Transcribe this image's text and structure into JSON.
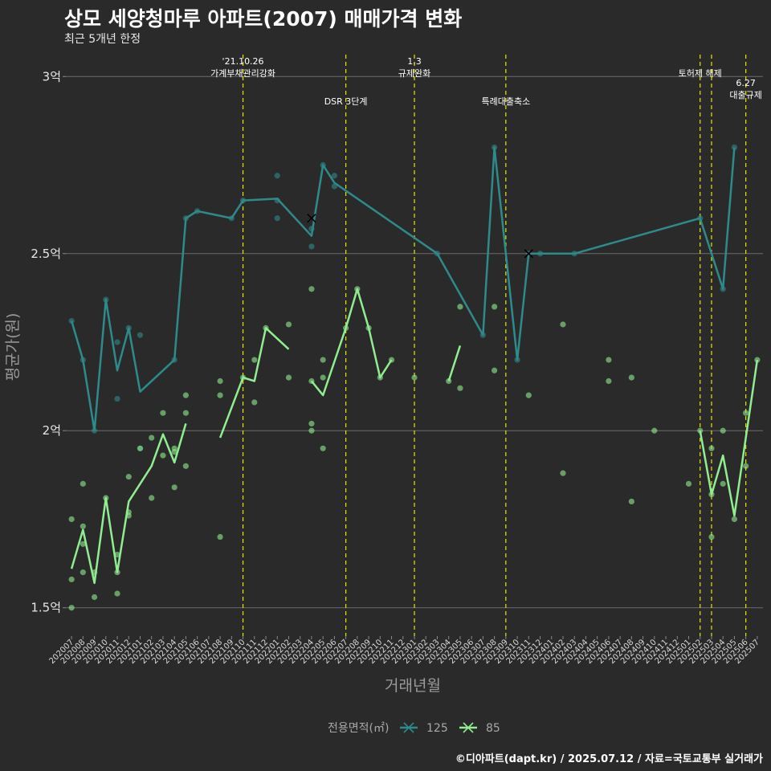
{
  "title": "상모 세양청마루 아파트(2007) 매매가격 변화",
  "subtitle": "최근 5개년 한정",
  "caption": "©디아파트(dapt.kr) / 2025.07.12 / 자료=국토교통부 실거래가",
  "chart_data": {
    "type": "line",
    "xlabel": "거래년월",
    "ylabel": "평균가(원)",
    "ylim": [
      1.42,
      3.08
    ],
    "y_ticks": [
      {
        "value": 1.5,
        "label": "1.5억"
      },
      {
        "value": 2.0,
        "label": "2억"
      },
      {
        "value": 2.5,
        "label": "2.5억"
      },
      {
        "value": 3.0,
        "label": "3억"
      }
    ],
    "categories": [
      "202007",
      "202008",
      "202009",
      "202010",
      "202011",
      "202012",
      "202101",
      "202102",
      "202103",
      "202104",
      "202105",
      "202106",
      "202107",
      "202108",
      "202109",
      "202110",
      "202111",
      "202112",
      "202201",
      "202202",
      "202203",
      "202204",
      "202205",
      "202206",
      "202207",
      "202208",
      "202209",
      "202210",
      "202211",
      "202212",
      "202301",
      "202302",
      "202303",
      "202304",
      "202305",
      "202306",
      "202307",
      "202308",
      "202309",
      "202310",
      "202311",
      "202312",
      "202401",
      "202402",
      "202403",
      "202404",
      "202405",
      "202406",
      "202407",
      "202408",
      "202409",
      "202410",
      "202411",
      "202412",
      "202501",
      "202502",
      "202503",
      "202504",
      "202505",
      "202506",
      "202507"
    ],
    "events": [
      {
        "x": "202110",
        "lines": [
          "'21.10.26",
          "가계부채관리강화"
        ],
        "row": 0
      },
      {
        "x": "202207",
        "lines": [
          "DSR 3단계"
        ],
        "row": 1
      },
      {
        "x": "202301",
        "lines": [
          "1.3",
          "규제완화"
        ],
        "row": 0
      },
      {
        "x": "202309",
        "lines": [
          "특례대출축소"
        ],
        "row": 1
      },
      {
        "x": "202502",
        "lines": [
          "토허제 해제"
        ],
        "row": 0
      },
      {
        "x": "202503",
        "lines": [],
        "row": 0
      },
      {
        "x": "202506",
        "lines": [
          "6.27",
          "대출규제"
        ],
        "row": 2
      }
    ],
    "legend": {
      "title": "전용면적(㎡)",
      "position": "bottom"
    },
    "series": [
      {
        "name": "125",
        "color": "#2e8b8b",
        "line": [
          [
            0,
            2.31
          ],
          [
            1,
            2.2
          ],
          [
            2,
            2.0
          ],
          [
            3,
            2.37
          ],
          [
            4,
            2.17
          ],
          [
            5,
            2.29
          ],
          [
            6,
            2.11
          ],
          [
            9,
            2.2
          ],
          [
            10,
            2.6
          ],
          [
            11,
            2.62
          ],
          [
            14,
            2.6
          ],
          [
            15,
            2.65
          ],
          [
            18,
            2.655
          ],
          [
            21,
            2.55
          ],
          [
            22,
            2.75
          ],
          [
            23,
            2.7
          ],
          [
            32,
            2.5
          ],
          [
            36,
            2.27
          ],
          [
            37,
            2.8
          ],
          [
            39,
            2.2
          ],
          [
            40,
            2.5
          ],
          [
            41,
            2.5
          ],
          [
            44,
            2.5
          ],
          [
            55,
            2.6
          ],
          [
            57,
            2.4
          ],
          [
            58,
            2.8
          ]
        ],
        "points": [
          [
            0,
            2.31
          ],
          [
            1,
            2.2
          ],
          [
            2,
            2.0
          ],
          [
            3,
            2.37
          ],
          [
            4,
            2.25
          ],
          [
            4,
            2.09
          ],
          [
            5,
            2.29
          ],
          [
            6,
            2.27
          ],
          [
            6,
            1.95
          ],
          [
            9,
            2.2
          ],
          [
            10,
            2.6
          ],
          [
            11,
            2.62
          ],
          [
            14,
            2.6
          ],
          [
            15,
            2.65
          ],
          [
            18,
            2.72
          ],
          [
            18,
            2.65
          ],
          [
            18,
            2.6
          ],
          [
            21,
            2.52
          ],
          [
            21,
            2.57
          ],
          [
            22,
            2.75
          ],
          [
            23,
            2.72
          ],
          [
            23,
            2.69
          ],
          [
            32,
            2.5
          ],
          [
            36,
            2.27
          ],
          [
            37,
            2.8
          ],
          [
            39,
            2.2
          ],
          [
            40,
            2.5
          ],
          [
            41,
            2.5
          ],
          [
            44,
            2.5
          ],
          [
            55,
            2.6
          ],
          [
            57,
            2.4
          ],
          [
            58,
            2.8
          ]
        ],
        "cancelled": [
          [
            21,
            2.6
          ],
          [
            40,
            2.5
          ]
        ]
      },
      {
        "name": "85",
        "color": "#90ee90",
        "line_segments": [
          [
            [
              0,
              1.61
            ],
            [
              1,
              1.72
            ],
            [
              2,
              1.57
            ],
            [
              3,
              1.81
            ],
            [
              4,
              1.6
            ],
            [
              5,
              1.8
            ],
            [
              7,
              1.9
            ],
            [
              8,
              1.99
            ],
            [
              9,
              1.91
            ],
            [
              10,
              2.02
            ]
          ],
          [
            [
              13,
              1.98
            ],
            [
              15,
              2.15
            ],
            [
              16,
              2.14
            ],
            [
              17,
              2.29
            ],
            [
              19,
              2.23
            ]
          ],
          [
            [
              21,
              2.14
            ],
            [
              22,
              2.1
            ],
            [
              24,
              2.29
            ],
            [
              25,
              2.4
            ],
            [
              26,
              2.29
            ],
            [
              27,
              2.15
            ],
            [
              28,
              2.2
            ]
          ],
          [
            [
              33,
              2.14
            ],
            [
              34,
              2.24
            ]
          ],
          [
            [
              55,
              2.0
            ],
            [
              56,
              1.82
            ],
            [
              57,
              1.93
            ],
            [
              58,
              1.76
            ],
            [
              60,
              2.2
            ]
          ]
        ],
        "points": [
          [
            0,
            1.75
          ],
          [
            0,
            1.58
          ],
          [
            0,
            1.5
          ],
          [
            1,
            1.85
          ],
          [
            1,
            1.73
          ],
          [
            1,
            1.68
          ],
          [
            1,
            1.6
          ],
          [
            2,
            1.6
          ],
          [
            2,
            1.53
          ],
          [
            3,
            1.81
          ],
          [
            4,
            1.65
          ],
          [
            4,
            1.6
          ],
          [
            4,
            1.54
          ],
          [
            5,
            1.87
          ],
          [
            5,
            1.77
          ],
          [
            5,
            1.76
          ],
          [
            6,
            1.95
          ],
          [
            7,
            1.98
          ],
          [
            7,
            1.81
          ],
          [
            8,
            2.05
          ],
          [
            8,
            1.93
          ],
          [
            9,
            1.95
          ],
          [
            9,
            1.94
          ],
          [
            9,
            1.84
          ],
          [
            10,
            2.1
          ],
          [
            10,
            2.05
          ],
          [
            10,
            1.9
          ],
          [
            13,
            2.14
          ],
          [
            13,
            2.1
          ],
          [
            13,
            1.7
          ],
          [
            15,
            2.15
          ],
          [
            16,
            2.2
          ],
          [
            16,
            2.08
          ],
          [
            17,
            2.29
          ],
          [
            19,
            2.3
          ],
          [
            19,
            2.15
          ],
          [
            21,
            2.4
          ],
          [
            21,
            2.14
          ],
          [
            21,
            2.02
          ],
          [
            21,
            2.0
          ],
          [
            22,
            2.2
          ],
          [
            22,
            2.15
          ],
          [
            22,
            1.95
          ],
          [
            24,
            2.29
          ],
          [
            25,
            2.4
          ],
          [
            26,
            2.29
          ],
          [
            27,
            2.15
          ],
          [
            28,
            2.2
          ],
          [
            30,
            2.15
          ],
          [
            33,
            2.14
          ],
          [
            34,
            2.35
          ],
          [
            34,
            2.12
          ],
          [
            37,
            2.35
          ],
          [
            37,
            2.17
          ],
          [
            40,
            2.1
          ],
          [
            43,
            2.3
          ],
          [
            43,
            1.88
          ],
          [
            47,
            2.2
          ],
          [
            47,
            2.14
          ],
          [
            49,
            2.15
          ],
          [
            49,
            1.8
          ],
          [
            51,
            2.0
          ],
          [
            54,
            1.85
          ],
          [
            55,
            2.0
          ],
          [
            56,
            1.95
          ],
          [
            56,
            1.82
          ],
          [
            56,
            1.7
          ],
          [
            57,
            2.0
          ],
          [
            57,
            1.85
          ],
          [
            58,
            1.75
          ],
          [
            59,
            2.05
          ],
          [
            59,
            1.9
          ],
          [
            60,
            2.2
          ]
        ]
      }
    ]
  }
}
